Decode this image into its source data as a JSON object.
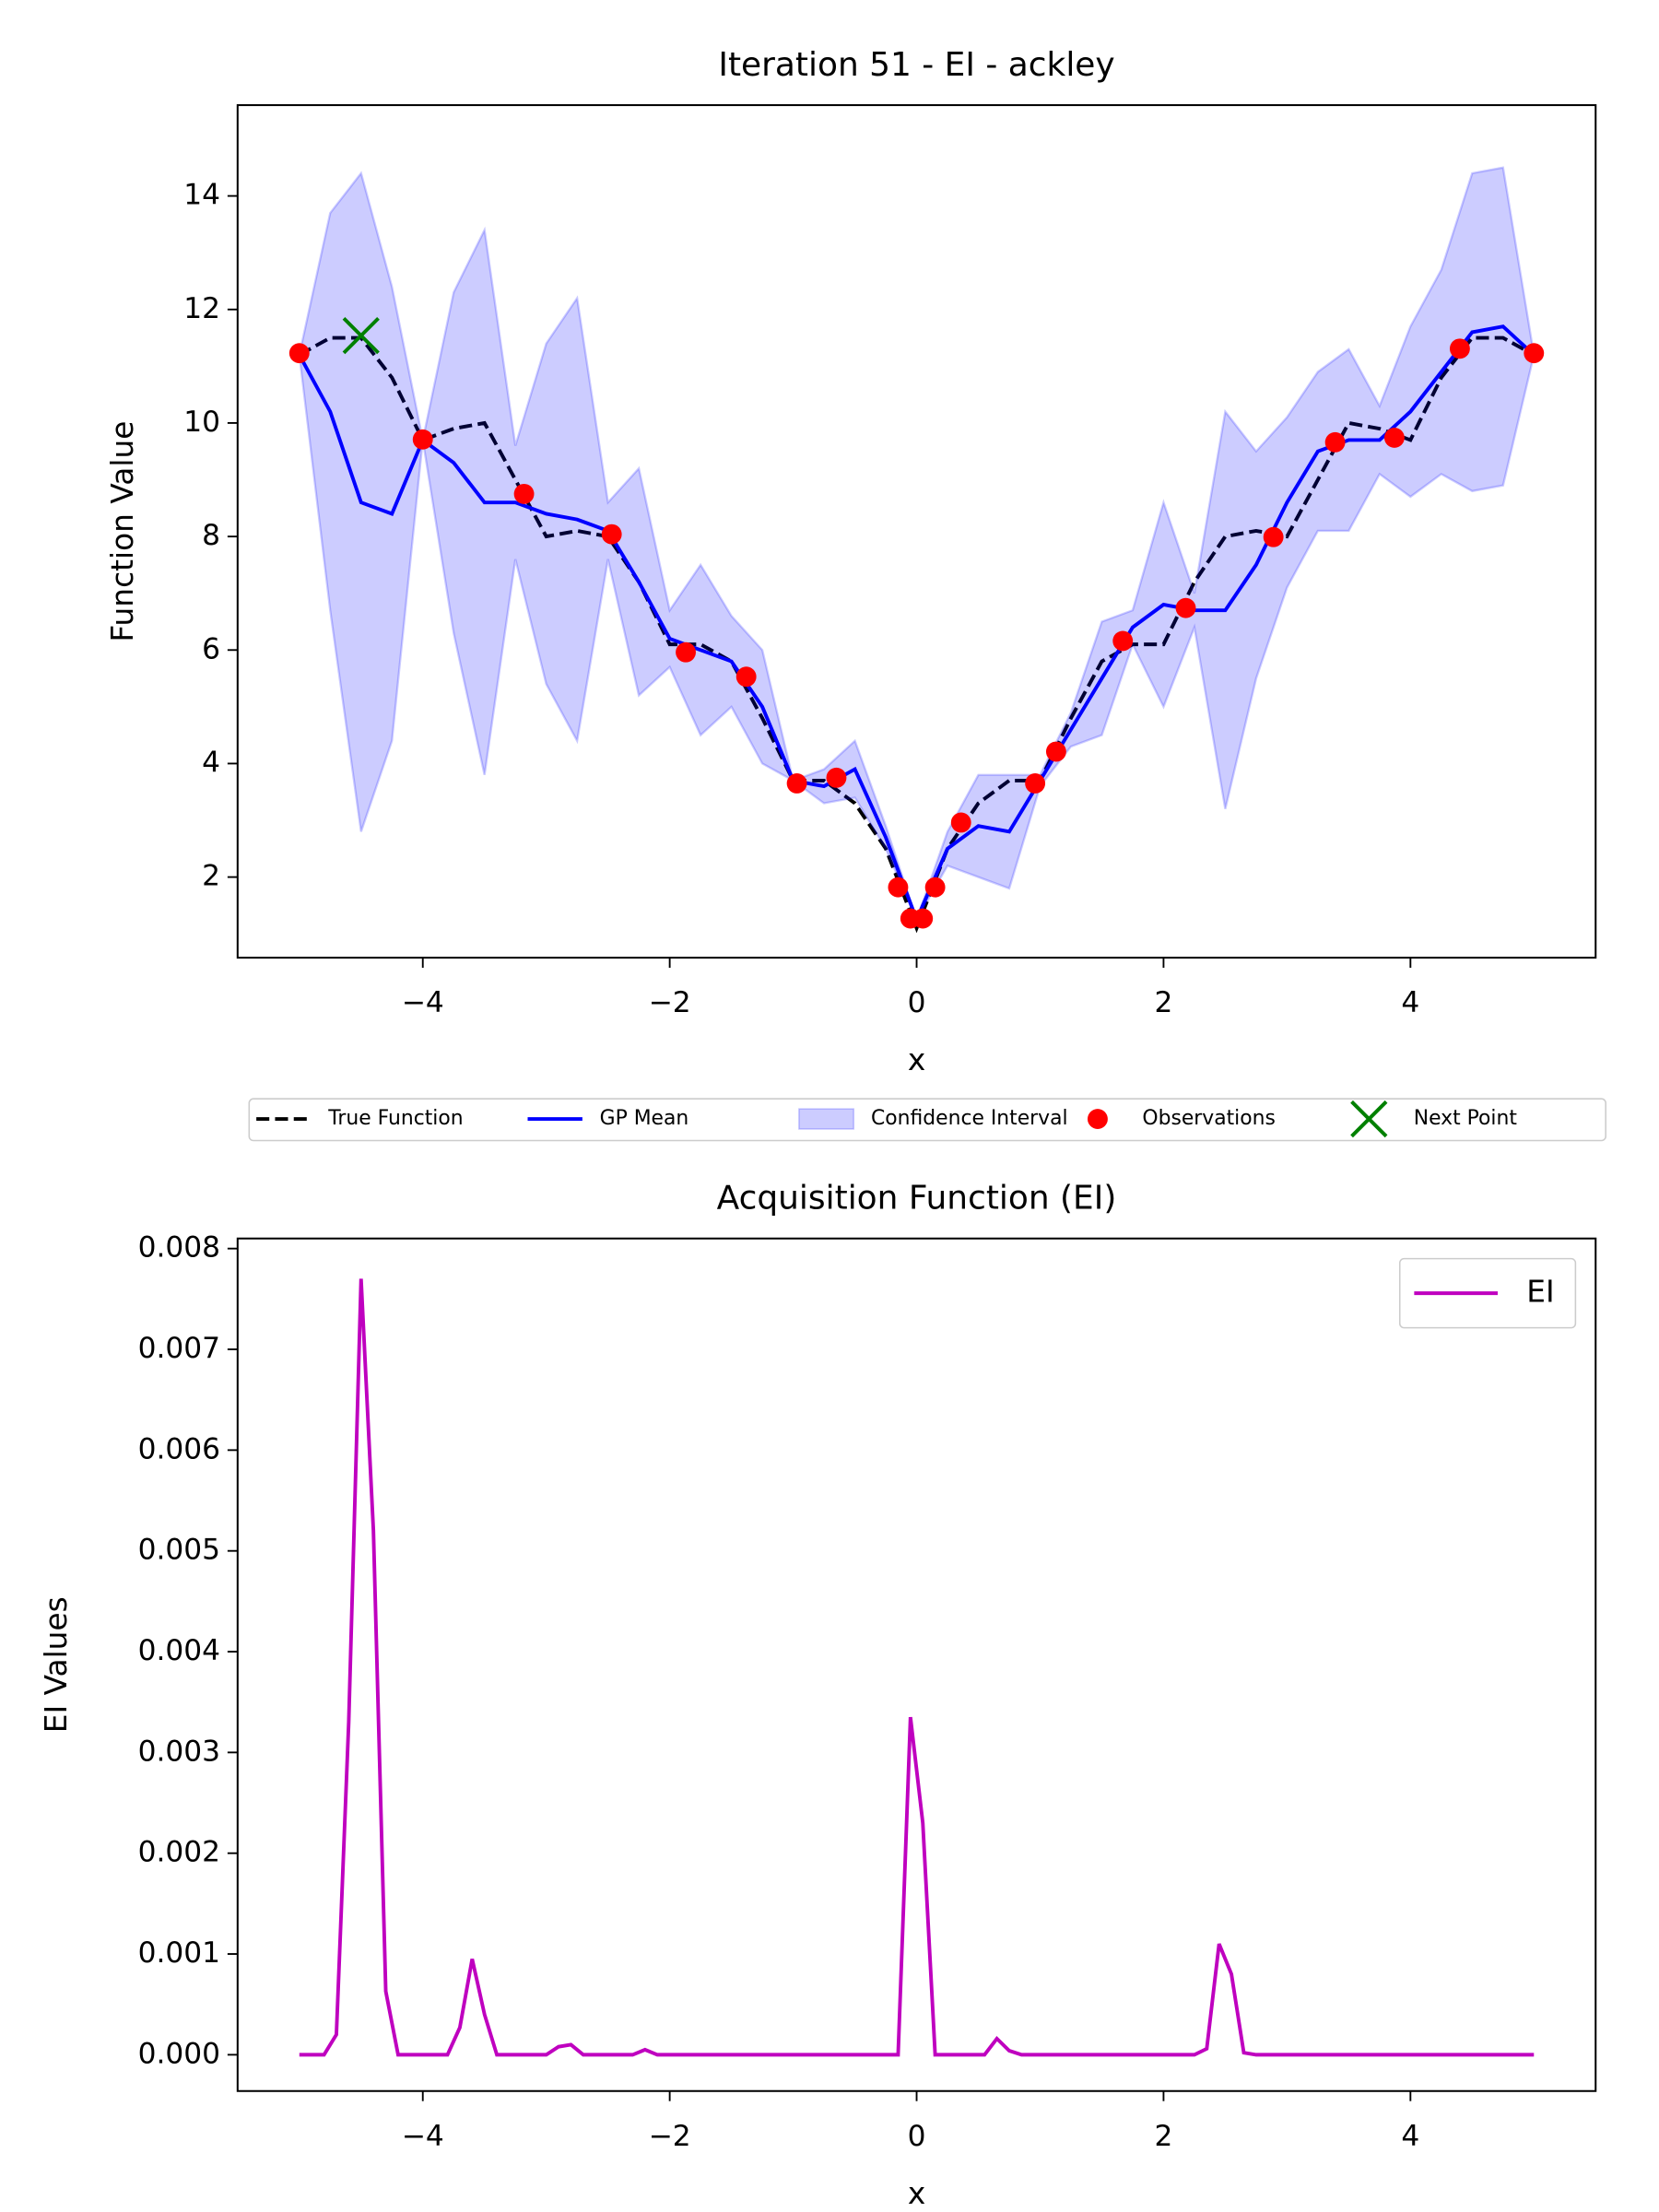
{
  "chart_data": [
    {
      "type": "line",
      "title": "Iteration 51 - EI - ackley",
      "xlabel": "x",
      "ylabel": "Function Value",
      "x": [
        -5,
        -4.75,
        -4.5,
        -4.25,
        -4,
        -3.75,
        -3.5,
        -3.25,
        -3,
        -2.75,
        -2.5,
        -2.25,
        -2,
        -1.75,
        -1.5,
        -1.25,
        -1,
        -0.75,
        -0.5,
        -0.25,
        0,
        0.25,
        0.5,
        0.75,
        1,
        1.25,
        1.5,
        1.75,
        2,
        2.25,
        2.5,
        2.75,
        3,
        3.25,
        3.5,
        3.75,
        4,
        4.25,
        4.5,
        4.75,
        5
      ],
      "series": [
        {
          "name": "True Function",
          "color": "#000000",
          "dashed": true,
          "values": [
            11.2,
            11.5,
            11.5,
            10.8,
            9.7,
            9.9,
            10.0,
            9.0,
            8.0,
            8.1,
            8.0,
            7.2,
            6.1,
            6.1,
            5.8,
            4.8,
            3.7,
            3.7,
            3.3,
            2.5,
            1.1,
            2.5,
            3.3,
            3.7,
            3.7,
            4.8,
            5.8,
            6.1,
            6.1,
            7.2,
            8.0,
            8.1,
            8.0,
            9.0,
            10.0,
            9.9,
            9.7,
            10.8,
            11.5,
            11.5,
            11.2
          ]
        },
        {
          "name": "GP Mean",
          "color": "#0000ff",
          "values": [
            11.2,
            10.2,
            8.6,
            8.4,
            9.7,
            9.3,
            8.6,
            8.6,
            8.4,
            8.3,
            8.1,
            7.2,
            6.2,
            6.0,
            5.8,
            5.0,
            3.7,
            3.6,
            3.9,
            2.7,
            1.25,
            2.5,
            2.9,
            2.8,
            3.7,
            4.6,
            5.5,
            6.4,
            6.8,
            6.7,
            6.7,
            7.5,
            8.6,
            9.5,
            9.7,
            9.7,
            10.2,
            10.9,
            11.6,
            11.7,
            11.2
          ]
        },
        {
          "name": "Confidence Interval",
          "color": "#0000ff",
          "opacity": 0.2,
          "lower": [
            11.2,
            6.7,
            2.8,
            4.4,
            9.7,
            6.3,
            3.8,
            7.6,
            5.4,
            4.4,
            7.6,
            5.2,
            5.7,
            4.5,
            5.0,
            4.0,
            3.7,
            3.3,
            3.4,
            2.5,
            1.25,
            2.2,
            2.0,
            1.8,
            3.6,
            4.3,
            4.5,
            6.1,
            5.0,
            6.4,
            3.2,
            5.5,
            7.1,
            8.1,
            8.1,
            9.1,
            8.7,
            9.1,
            8.8,
            8.9,
            11.2
          ],
          "upper": [
            11.2,
            13.7,
            14.4,
            12.4,
            9.7,
            12.3,
            13.4,
            9.6,
            11.4,
            12.2,
            8.6,
            9.2,
            6.7,
            7.5,
            6.6,
            6.0,
            3.7,
            3.9,
            4.4,
            2.9,
            1.25,
            2.8,
            3.8,
            3.8,
            3.8,
            4.9,
            6.5,
            6.7,
            8.6,
            7.0,
            10.2,
            9.5,
            10.1,
            10.9,
            11.3,
            10.3,
            11.7,
            12.7,
            14.4,
            14.5,
            11.2
          ]
        },
        {
          "name": "Observations",
          "color": "#ff0000",
          "marker": "o",
          "x": [
            -5,
            -4,
            -3.18,
            -2.47,
            -1.87,
            -1.38,
            -0.97,
            -0.65,
            -0.15,
            -0.05,
            0.05,
            0.15,
            0.36,
            0.96,
            1.13,
            1.67,
            2.18,
            2.89,
            3.39,
            3.87,
            4.4,
            5
          ],
          "values": [
            11.23,
            9.71,
            8.75,
            8.04,
            5.96,
            5.53,
            3.65,
            3.75,
            1.82,
            1.27,
            1.27,
            1.82,
            2.96,
            3.65,
            4.21,
            6.16,
            6.74,
            7.99,
            9.66,
            9.74,
            11.31,
            11.23
          ]
        },
        {
          "name": "Next Point",
          "color": "#008000",
          "marker": "x",
          "x": [
            -4.5
          ],
          "values": [
            11.54
          ]
        }
      ],
      "xlim": [
        -5.5,
        5.5
      ],
      "ylim": [
        0.58,
        15.6
      ],
      "xticks": [
        {
          "value": -4,
          "label": "−4"
        },
        {
          "value": -2,
          "label": "−2"
        },
        0,
        2,
        4
      ],
      "yticks": [
        2,
        4,
        6,
        8,
        10,
        12,
        14
      ],
      "legend": "below"
    },
    {
      "type": "line",
      "title": "Acquisition Function (EI)",
      "xlabel": "x",
      "ylabel": "EI Values",
      "x": [
        -5,
        -4.8,
        -4.7,
        -4.6,
        -4.5,
        -4.4,
        -4.3,
        -4.2,
        -3.8,
        -3.7,
        -3.6,
        -3.5,
        -3.4,
        -3.0,
        -2.9,
        -2.8,
        -2.7,
        -2.3,
        -2.2,
        -2.1,
        -0.15,
        -0.05,
        0.05,
        0.15,
        0.55,
        0.65,
        0.75,
        0.85,
        2.25,
        2.35,
        2.45,
        2.55,
        2.65,
        2.75,
        5
      ],
      "series": [
        {
          "name": "EI",
          "color": "#bf00bf",
          "values": [
            0,
            0,
            0.0002,
            0.0033,
            0.0077,
            0.0052,
            0.00063,
            0,
            0,
            0.00027,
            0.00095,
            0.0004,
            0,
            0,
            8e-05,
            0.0001,
            0,
            0,
            5e-05,
            0,
            0,
            0.00335,
            0.0023,
            0,
            0,
            0.00016,
            4e-05,
            0,
            0,
            6e-05,
            0.0011,
            0.0008,
            2e-05,
            0,
            0
          ]
        }
      ],
      "xlim": [
        -5.5,
        5.5
      ],
      "ylim": [
        -0.00036,
        0.0081
      ],
      "xticks": [
        {
          "value": -4,
          "label": "−4"
        },
        {
          "value": -2,
          "label": "−2"
        },
        0,
        2,
        4
      ],
      "yticks": [
        {
          "value": 0,
          "label": "0.000"
        },
        {
          "value": 0.001,
          "label": "0.001"
        },
        {
          "value": 0.002,
          "label": "0.002"
        },
        {
          "value": 0.003,
          "label": "0.003"
        },
        {
          "value": 0.004,
          "label": "0.004"
        },
        {
          "value": 0.005,
          "label": "0.005"
        },
        {
          "value": 0.006,
          "label": "0.006"
        },
        {
          "value": 0.007,
          "label": "0.007"
        },
        {
          "value": 0.008,
          "label": "0.008"
        }
      ],
      "legend": "upper right"
    }
  ]
}
